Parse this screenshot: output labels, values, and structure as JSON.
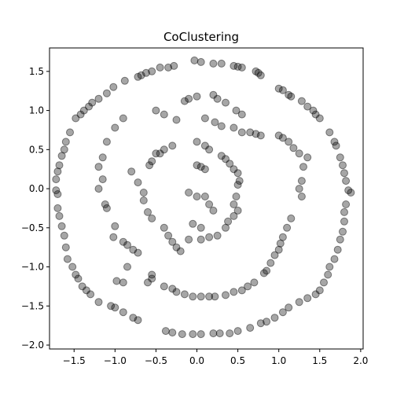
{
  "chart_data": {
    "type": "scatter",
    "title": "CoClustering",
    "xlabel": "",
    "ylabel": "",
    "xlim": [
      -1.8,
      2.03
    ],
    "ylim": [
      -2.05,
      1.8
    ],
    "xticks": [
      -1.5,
      -1.0,
      -0.5,
      0.0,
      0.5,
      1.0,
      1.5,
      2.0
    ],
    "xtick_labels": [
      "−1.5",
      "−1.0",
      "−0.5",
      "0.0",
      "0.5",
      "1.0",
      "1.5",
      "2.0"
    ],
    "yticks": [
      -2.0,
      -1.5,
      -1.0,
      -0.5,
      0.0,
      0.5,
      1.0,
      1.5
    ],
    "ytick_labels": [
      "−2.0",
      "−1.5",
      "−1.0",
      "−0.5",
      "0.0",
      "0.5",
      "1.0",
      "1.5"
    ],
    "grid": false,
    "marker_color": "#000000",
    "marker_alpha": 0.35,
    "series": [
      {
        "values_description": "",
        "rings": [
          {
            "cx": 0.08,
            "cy": -0.1,
            "r": 1.76,
            "n": 210,
            "jitter": 0.035
          },
          {
            "cx": 0.1,
            "cy": -0.12,
            "r": 1.22,
            "n": 150,
            "jitter": 0.04
          },
          {
            "cx": 0.02,
            "cy": -0.15,
            "r": 0.62,
            "n": 110,
            "jitter": 0.06
          },
          {
            "cx": 0.05,
            "cy": -0.2,
            "r": 0.25,
            "n": 50,
            "jitter": 0.06
          }
        ]
      }
    ],
    "points": [
      [
        -0.03,
        1.64
      ],
      [
        0.05,
        1.62
      ],
      [
        0.2,
        1.6
      ],
      [
        0.3,
        1.6
      ],
      [
        0.45,
        1.57
      ],
      [
        0.5,
        1.56
      ],
      [
        0.55,
        1.55
      ],
      [
        0.72,
        1.5
      ],
      [
        0.75,
        1.48
      ],
      [
        0.78,
        1.45
      ],
      [
        -0.28,
        1.57
      ],
      [
        -0.35,
        1.55
      ],
      [
        -0.45,
        1.55
      ],
      [
        -0.55,
        1.5
      ],
      [
        -0.62,
        1.48
      ],
      [
        -0.68,
        1.45
      ],
      [
        -0.72,
        1.43
      ],
      [
        -0.88,
        1.38
      ],
      [
        -1.02,
        1.3
      ],
      [
        1.0,
        1.28
      ],
      [
        1.05,
        1.26
      ],
      [
        1.12,
        1.2
      ],
      [
        1.15,
        1.18
      ],
      [
        1.28,
        1.12
      ],
      [
        1.35,
        1.05
      ],
      [
        1.42,
        1.0
      ],
      [
        1.45,
        0.95
      ],
      [
        1.5,
        0.9
      ],
      [
        -1.1,
        1.22
      ],
      [
        -1.2,
        1.15
      ],
      [
        -1.28,
        1.1
      ],
      [
        -1.32,
        1.05
      ],
      [
        -1.38,
        1.0
      ],
      [
        -1.42,
        0.95
      ],
      [
        -1.48,
        0.9
      ],
      [
        1.62,
        0.72
      ],
      [
        1.68,
        0.6
      ],
      [
        1.7,
        0.55
      ],
      [
        1.75,
        0.4
      ],
      [
        1.78,
        0.3
      ],
      [
        1.8,
        0.2
      ],
      [
        1.82,
        0.1
      ],
      [
        1.85,
        -0.02
      ],
      [
        1.88,
        -0.05
      ],
      [
        -1.55,
        0.72
      ],
      [
        -1.6,
        0.6
      ],
      [
        -1.62,
        0.5
      ],
      [
        -1.65,
        0.42
      ],
      [
        -1.68,
        0.3
      ],
      [
        -1.7,
        0.22
      ],
      [
        -1.72,
        0.12
      ],
      [
        -1.72,
        -0.02
      ],
      [
        -1.7,
        -0.07
      ],
      [
        1.82,
        -0.2
      ],
      [
        1.8,
        -0.3
      ],
      [
        1.8,
        -0.42
      ],
      [
        1.78,
        -0.55
      ],
      [
        1.75,
        -0.65
      ],
      [
        1.72,
        -0.78
      ],
      [
        1.68,
        -0.9
      ],
      [
        1.62,
        -1.0
      ],
      [
        1.6,
        -1.1
      ],
      [
        -1.7,
        -0.25
      ],
      [
        -1.68,
        -0.35
      ],
      [
        -1.65,
        -0.48
      ],
      [
        -1.62,
        -0.6
      ],
      [
        -1.6,
        -0.75
      ],
      [
        -1.58,
        -0.9
      ],
      [
        -1.52,
        -1.0
      ],
      [
        -1.48,
        -1.1
      ],
      [
        -1.45,
        -1.15
      ],
      [
        1.55,
        -1.2
      ],
      [
        1.5,
        -1.3
      ],
      [
        1.45,
        -1.35
      ],
      [
        1.35,
        -1.4
      ],
      [
        1.25,
        -1.45
      ],
      [
        1.12,
        -1.52
      ],
      [
        1.05,
        -1.58
      ],
      [
        0.95,
        -1.65
      ],
      [
        0.85,
        -1.7
      ],
      [
        0.78,
        -1.72
      ],
      [
        -1.4,
        -1.25
      ],
      [
        -1.35,
        -1.3
      ],
      [
        -1.3,
        -1.35
      ],
      [
        -1.2,
        -1.45
      ],
      [
        -1.05,
        -1.5
      ],
      [
        -1.0,
        -1.52
      ],
      [
        -0.9,
        -1.58
      ],
      [
        -0.78,
        -1.65
      ],
      [
        -0.72,
        -1.68
      ],
      [
        0.65,
        -1.78
      ],
      [
        0.5,
        -1.82
      ],
      [
        0.4,
        -1.85
      ],
      [
        0.28,
        -1.85
      ],
      [
        0.2,
        -1.85
      ],
      [
        0.05,
        -1.86
      ],
      [
        -0.05,
        -1.86
      ],
      [
        -0.18,
        -1.86
      ],
      [
        -0.3,
        -1.84
      ],
      [
        -0.38,
        -1.82
      ],
      [
        0.0,
        1.18
      ],
      [
        -0.1,
        1.15
      ],
      [
        -0.15,
        1.12
      ],
      [
        0.2,
        1.2
      ],
      [
        0.25,
        1.15
      ],
      [
        0.35,
        1.1
      ],
      [
        0.48,
        1.0
      ],
      [
        0.55,
        0.95
      ],
      [
        -0.25,
        0.88
      ],
      [
        -0.4,
        0.95
      ],
      [
        -0.5,
        1.0
      ],
      [
        0.1,
        0.9
      ],
      [
        0.22,
        0.85
      ],
      [
        0.3,
        0.8
      ],
      [
        0.45,
        0.78
      ],
      [
        0.55,
        0.72
      ],
      [
        0.65,
        0.72
      ],
      [
        0.72,
        0.7
      ],
      [
        0.78,
        0.68
      ],
      [
        -0.9,
        0.9
      ],
      [
        -1.0,
        0.78
      ],
      [
        -1.1,
        0.6
      ],
      [
        -1.15,
        0.4
      ],
      [
        -1.2,
        0.28
      ],
      [
        -1.15,
        0.12
      ],
      [
        -1.2,
        0.0
      ],
      [
        -1.12,
        -0.2
      ],
      [
        -1.1,
        -0.25
      ],
      [
        1.0,
        0.68
      ],
      [
        1.05,
        0.65
      ],
      [
        1.12,
        0.6
      ],
      [
        1.18,
        0.52
      ],
      [
        1.25,
        0.45
      ],
      [
        1.35,
        0.4
      ],
      [
        1.3,
        0.28
      ],
      [
        1.28,
        0.1
      ],
      [
        1.25,
        0.0
      ],
      [
        1.28,
        -0.1
      ],
      [
        -1.0,
        -0.48
      ],
      [
        -1.02,
        -0.62
      ],
      [
        -0.9,
        -0.68
      ],
      [
        -0.85,
        -0.72
      ],
      [
        -0.78,
        -0.78
      ],
      [
        -0.72,
        -0.82
      ],
      [
        -0.85,
        -1.0
      ],
      [
        -0.9,
        -1.2
      ],
      [
        -0.98,
        -1.18
      ],
      [
        1.15,
        -0.38
      ],
      [
        1.1,
        -0.5
      ],
      [
        1.05,
        -0.62
      ],
      [
        1.02,
        -0.7
      ],
      [
        1.0,
        -0.78
      ],
      [
        0.95,
        -0.85
      ],
      [
        0.9,
        -0.95
      ],
      [
        0.85,
        -1.05
      ],
      [
        0.82,
        -1.08
      ],
      [
        -0.55,
        -1.1
      ],
      [
        -0.6,
        -1.2
      ],
      [
        -0.55,
        -1.15
      ],
      [
        -0.4,
        -1.25
      ],
      [
        -0.3,
        -1.28
      ],
      [
        -0.25,
        -1.32
      ],
      [
        -0.15,
        -1.35
      ],
      [
        -0.05,
        -1.38
      ],
      [
        0.05,
        -1.38
      ],
      [
        0.15,
        -1.38
      ],
      [
        0.22,
        -1.38
      ],
      [
        0.35,
        -1.36
      ],
      [
        0.45,
        -1.32
      ],
      [
        0.55,
        -1.3
      ],
      [
        0.62,
        -1.25
      ],
      [
        0.7,
        -1.2
      ],
      [
        -0.5,
        0.45
      ],
      [
        -0.55,
        0.35
      ],
      [
        -0.58,
        0.3
      ],
      [
        -0.8,
        0.22
      ],
      [
        -0.72,
        0.08
      ],
      [
        -0.65,
        -0.05
      ],
      [
        -0.65,
        -0.15
      ],
      [
        -0.6,
        -0.3
      ],
      [
        -0.55,
        -0.38
      ],
      [
        -0.3,
        0.55
      ],
      [
        -0.4,
        0.5
      ],
      [
        -0.45,
        0.45
      ],
      [
        0.0,
        0.6
      ],
      [
        0.1,
        0.55
      ],
      [
        0.15,
        0.5
      ],
      [
        0.3,
        0.42
      ],
      [
        0.35,
        0.38
      ],
      [
        0.4,
        0.32
      ],
      [
        0.45,
        0.25
      ],
      [
        0.5,
        0.2
      ],
      [
        0.52,
        0.1
      ],
      [
        0.5,
        0.05
      ],
      [
        0.48,
        -0.1
      ],
      [
        0.45,
        -0.2
      ],
      [
        0.5,
        -0.28
      ],
      [
        0.45,
        -0.35
      ],
      [
        0.38,
        -0.42
      ],
      [
        0.35,
        -0.5
      ],
      [
        -0.4,
        -0.5
      ],
      [
        -0.35,
        -0.6
      ],
      [
        -0.3,
        -0.68
      ],
      [
        -0.25,
        -0.75
      ],
      [
        -0.2,
        -0.8
      ],
      [
        0.25,
        -0.6
      ],
      [
        0.15,
        -0.62
      ],
      [
        0.05,
        -0.65
      ],
      [
        -0.1,
        -0.65
      ],
      [
        0.0,
        0.3
      ],
      [
        0.05,
        0.28
      ],
      [
        0.1,
        0.25
      ],
      [
        -0.1,
        -0.05
      ],
      [
        0.0,
        -0.1
      ],
      [
        0.1,
        -0.1
      ],
      [
        0.15,
        -0.2
      ],
      [
        0.2,
        -0.28
      ],
      [
        -0.05,
        -0.45
      ],
      [
        0.05,
        -0.5
      ]
    ]
  }
}
